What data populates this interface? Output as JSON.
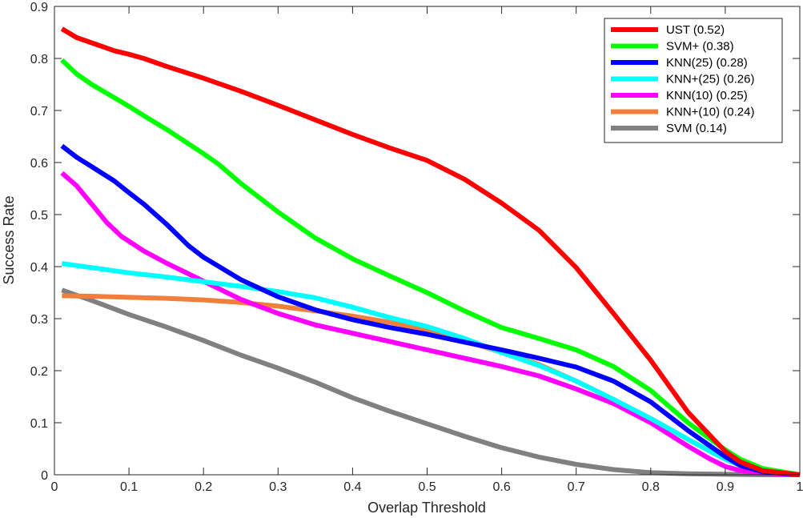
{
  "chart_data": {
    "type": "line",
    "title": "",
    "xlabel": "Overlap Threshold",
    "ylabel": "Success Rate",
    "xlim": [
      0,
      1
    ],
    "ylim": [
      0,
      0.9
    ],
    "xticks": [
      "0",
      "0.1",
      "0.2",
      "0.3",
      "0.4",
      "0.5",
      "0.6",
      "0.7",
      "0.8",
      "0.9",
      "1"
    ],
    "yticks": [
      "0",
      "0.1",
      "0.2",
      "0.3",
      "0.4",
      "0.5",
      "0.6",
      "0.7",
      "0.8",
      "0.9"
    ],
    "grid": false,
    "legend_position": "top-right",
    "series": [
      {
        "name": "UST (0.52)",
        "color": "#ff0000",
        "x": [
          0.01,
          0.03,
          0.05,
          0.08,
          0.1,
          0.12,
          0.15,
          0.2,
          0.25,
          0.3,
          0.35,
          0.4,
          0.45,
          0.5,
          0.55,
          0.6,
          0.65,
          0.7,
          0.75,
          0.8,
          0.85,
          0.88,
          0.9,
          0.92,
          0.95,
          1.0
        ],
        "y": [
          0.857,
          0.84,
          0.83,
          0.815,
          0.808,
          0.8,
          0.785,
          0.762,
          0.737,
          0.71,
          0.682,
          0.654,
          0.628,
          0.604,
          0.568,
          0.522,
          0.47,
          0.398,
          0.31,
          0.22,
          0.12,
          0.075,
          0.045,
          0.025,
          0.008,
          0.0
        ]
      },
      {
        "name": "SVM+ (0.38)",
        "color": "#00ff00",
        "x": [
          0.01,
          0.03,
          0.05,
          0.08,
          0.1,
          0.12,
          0.15,
          0.2,
          0.22,
          0.25,
          0.3,
          0.35,
          0.4,
          0.45,
          0.5,
          0.55,
          0.6,
          0.65,
          0.7,
          0.75,
          0.8,
          0.85,
          0.9,
          0.92,
          0.95,
          1.0
        ],
        "y": [
          0.797,
          0.77,
          0.75,
          0.725,
          0.708,
          0.69,
          0.664,
          0.617,
          0.597,
          0.56,
          0.505,
          0.455,
          0.415,
          0.382,
          0.35,
          0.315,
          0.283,
          0.262,
          0.24,
          0.208,
          0.162,
          0.1,
          0.048,
          0.03,
          0.012,
          0.0
        ]
      },
      {
        "name": "KNN(25) (0.28)",
        "color": "#0000ff",
        "x": [
          0.01,
          0.03,
          0.05,
          0.08,
          0.1,
          0.12,
          0.15,
          0.18,
          0.2,
          0.25,
          0.3,
          0.35,
          0.4,
          0.45,
          0.5,
          0.55,
          0.6,
          0.65,
          0.7,
          0.75,
          0.8,
          0.85,
          0.9,
          0.92,
          0.95,
          1.0
        ],
        "y": [
          0.632,
          0.61,
          0.592,
          0.565,
          0.542,
          0.52,
          0.482,
          0.44,
          0.418,
          0.375,
          0.342,
          0.317,
          0.298,
          0.283,
          0.27,
          0.255,
          0.24,
          0.224,
          0.207,
          0.18,
          0.14,
          0.085,
          0.035,
          0.018,
          0.006,
          0.0
        ]
      },
      {
        "name": "KNN+(25) (0.26)",
        "color": "#00ffff",
        "x": [
          0.01,
          0.05,
          0.1,
          0.15,
          0.2,
          0.25,
          0.3,
          0.35,
          0.4,
          0.45,
          0.5,
          0.55,
          0.6,
          0.65,
          0.7,
          0.75,
          0.8,
          0.85,
          0.88,
          0.9,
          0.92,
          0.95,
          1.0
        ],
        "y": [
          0.406,
          0.398,
          0.388,
          0.38,
          0.371,
          0.362,
          0.352,
          0.34,
          0.322,
          0.302,
          0.285,
          0.262,
          0.235,
          0.21,
          0.18,
          0.145,
          0.108,
          0.068,
          0.045,
          0.03,
          0.018,
          0.008,
          0.0
        ]
      },
      {
        "name": "KNN(10) (0.25)",
        "color": "#ff00ff",
        "x": [
          0.01,
          0.03,
          0.05,
          0.07,
          0.09,
          0.12,
          0.15,
          0.2,
          0.25,
          0.3,
          0.35,
          0.4,
          0.45,
          0.5,
          0.55,
          0.6,
          0.65,
          0.7,
          0.75,
          0.8,
          0.85,
          0.88,
          0.9,
          0.92,
          0.95,
          1.0
        ],
        "y": [
          0.58,
          0.555,
          0.52,
          0.485,
          0.458,
          0.43,
          0.407,
          0.372,
          0.337,
          0.31,
          0.288,
          0.272,
          0.256,
          0.24,
          0.224,
          0.208,
          0.19,
          0.165,
          0.137,
          0.1,
          0.055,
          0.03,
          0.016,
          0.008,
          0.003,
          0.0
        ]
      },
      {
        "name": "KNN+(10) (0.24)",
        "color": "#f07f3c",
        "x": [
          0.01,
          0.05,
          0.1,
          0.15,
          0.2,
          0.25,
          0.3,
          0.35,
          0.4,
          0.45,
          0.5,
          0.55,
          0.6,
          0.65,
          0.7,
          0.75,
          0.8,
          0.85,
          0.88,
          0.9,
          0.92,
          0.95,
          1.0
        ],
        "y": [
          0.344,
          0.343,
          0.341,
          0.339,
          0.336,
          0.331,
          0.324,
          0.315,
          0.305,
          0.293,
          0.278,
          0.258,
          0.235,
          0.212,
          0.18,
          0.145,
          0.108,
          0.068,
          0.045,
          0.03,
          0.018,
          0.008,
          0.0
        ]
      },
      {
        "name": "SVM (0.14)",
        "color": "#808080",
        "x": [
          0.01,
          0.05,
          0.1,
          0.15,
          0.2,
          0.25,
          0.3,
          0.35,
          0.4,
          0.45,
          0.5,
          0.55,
          0.6,
          0.65,
          0.7,
          0.75,
          0.8,
          0.85,
          0.9,
          0.95,
          1.0
        ],
        "y": [
          0.355,
          0.335,
          0.308,
          0.284,
          0.258,
          0.23,
          0.205,
          0.178,
          0.148,
          0.122,
          0.098,
          0.074,
          0.052,
          0.034,
          0.02,
          0.01,
          0.004,
          0.002,
          0.001,
          0.0,
          0.0
        ]
      }
    ]
  }
}
